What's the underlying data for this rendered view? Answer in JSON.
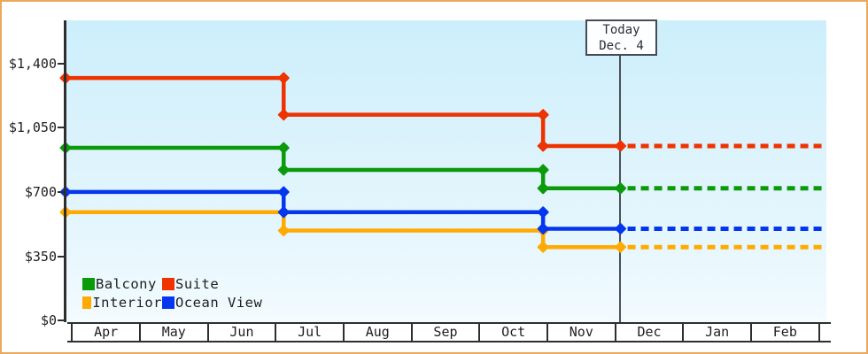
{
  "chart_data": {
    "type": "line",
    "subtype": "step",
    "title": "",
    "x_categories": [
      "Apr",
      "May",
      "Jun",
      "Jul",
      "Aug",
      "Sep",
      "Oct",
      "Nov",
      "Dec",
      "Jan",
      "Feb"
    ],
    "y_ticks": [
      {
        "label": "$0",
        "value": 0
      },
      {
        "label": "$350",
        "value": 350
      },
      {
        "label": "$700",
        "value": 700
      },
      {
        "label": "$1,050",
        "value": 1050
      },
      {
        "label": "$1,400",
        "value": 1400
      }
    ],
    "ylim": [
      0,
      1630
    ],
    "grid": "off",
    "today": {
      "label": "Today",
      "date_label": "Dec. 4",
      "x_month_fraction": 8.09
    },
    "price_change_x_month_fractions": [
      3.13,
      6.95
    ],
    "series": [
      {
        "name": "Balcony",
        "color": "#0a9a0a",
        "prices": [
          940,
          820,
          720
        ]
      },
      {
        "name": "Suite",
        "color": "#ee3300",
        "prices": [
          1320,
          1120,
          950
        ]
      },
      {
        "name": "Interior",
        "color": "#ffaa00",
        "prices": [
          590,
          490,
          400
        ]
      },
      {
        "name": "Ocean View",
        "color": "#0336ee",
        "prices": [
          700,
          590,
          500
        ]
      }
    ],
    "projection_note": "dotted line continues last price from today to right edge",
    "legend_position": "bottom-left inside plot"
  },
  "legend": {
    "items": [
      {
        "label": "Balcony",
        "color": "#0a9a0a"
      },
      {
        "label": "Suite",
        "color": "#ee3300"
      },
      {
        "label": "Interior",
        "color": "#ffaa00"
      },
      {
        "label": "Ocean View",
        "color": "#0336ee"
      }
    ]
  },
  "colors": {
    "frame_border": "#eaa85e",
    "axis": "#2e2e2e",
    "today_line": "#4a5158",
    "plot_bg_top": "#cceffb",
    "plot_bg_bottom": "#f3fbfe"
  }
}
